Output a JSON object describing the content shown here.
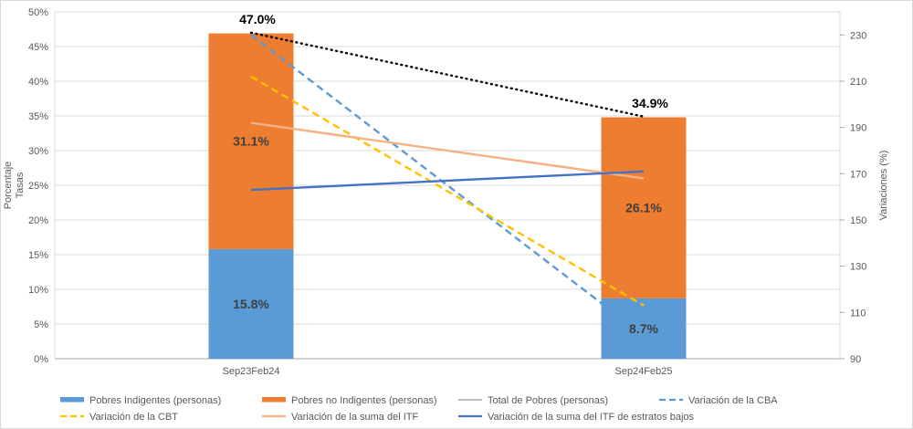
{
  "chart_data": {
    "type": "bar",
    "subtype": "stacked-bar-with-lines-dual-axis",
    "title": "",
    "categories": [
      "Sep23Feb24",
      "Sep24Feb25"
    ],
    "left_axis": {
      "title_lines": [
        "Porcentaje",
        "Tasas"
      ],
      "min": 0,
      "max": 50,
      "tick_step": 5,
      "tick_suffix": "%",
      "tick_labels": [
        "0%",
        "5%",
        "10%",
        "15%",
        "20%",
        "25%",
        "30%",
        "35%",
        "40%",
        "45%",
        "50%"
      ]
    },
    "right_axis": {
      "title": "Variaciones (%)",
      "min": 90,
      "max": 240,
      "tick_labels": [
        90,
        110,
        130,
        150,
        170,
        190,
        210,
        230
      ]
    },
    "grid": "horizontal-only",
    "series": [
      {
        "name": "Pobres Indigentes (personas)",
        "kind": "bar",
        "axis": "left",
        "color": "#5B9BD5",
        "values": [
          15.8,
          8.7
        ],
        "data_labels": [
          "15.8%",
          "8.7%"
        ]
      },
      {
        "name": "Pobres no Indigentes (personas)",
        "kind": "bar",
        "axis": "left",
        "color": "#ED7D31",
        "values": [
          31.1,
          26.1
        ],
        "data_labels": [
          "31.1%",
          "26.1%"
        ]
      },
      {
        "name": "Total de Pobres (personas)",
        "kind": "line",
        "axis": "left",
        "color": "#000000",
        "legend_swatch_color": "#A5A5A5",
        "dash": "dotted",
        "values": [
          47.0,
          34.9
        ],
        "data_labels": [
          "47.0%",
          "34.9%"
        ]
      },
      {
        "name": "Variación de la CBA",
        "kind": "line",
        "axis": "right",
        "color": "#5B9BD5",
        "dash": "dashed",
        "values": [
          230,
          100
        ],
        "end_hidden_behind_bar": true
      },
      {
        "name": "Variación de la CBT",
        "kind": "line",
        "axis": "right",
        "color": "#FFC000",
        "dash": "dashed",
        "values": [
          212,
          113
        ]
      },
      {
        "name": "Variación de la suma del ITF",
        "kind": "line",
        "axis": "right",
        "color": "#F4B183",
        "dash": "solid",
        "values": [
          192,
          168
        ]
      },
      {
        "name": "Variación de la suma del ITF de estratos bajos",
        "kind": "line",
        "axis": "right",
        "color": "#4472C4",
        "dash": "solid",
        "values": [
          163,
          171
        ]
      }
    ],
    "legend": {
      "position": "bottom",
      "rows": [
        [
          0,
          1,
          2,
          3
        ],
        [
          4,
          5,
          6
        ]
      ]
    },
    "colors": {
      "grid_line": "#D9D9D9",
      "axis_line": "#A6A6A6",
      "tick_text": "#595959",
      "inside_label_text": "#3F3F3F",
      "total_label_text": "#000000"
    }
  }
}
